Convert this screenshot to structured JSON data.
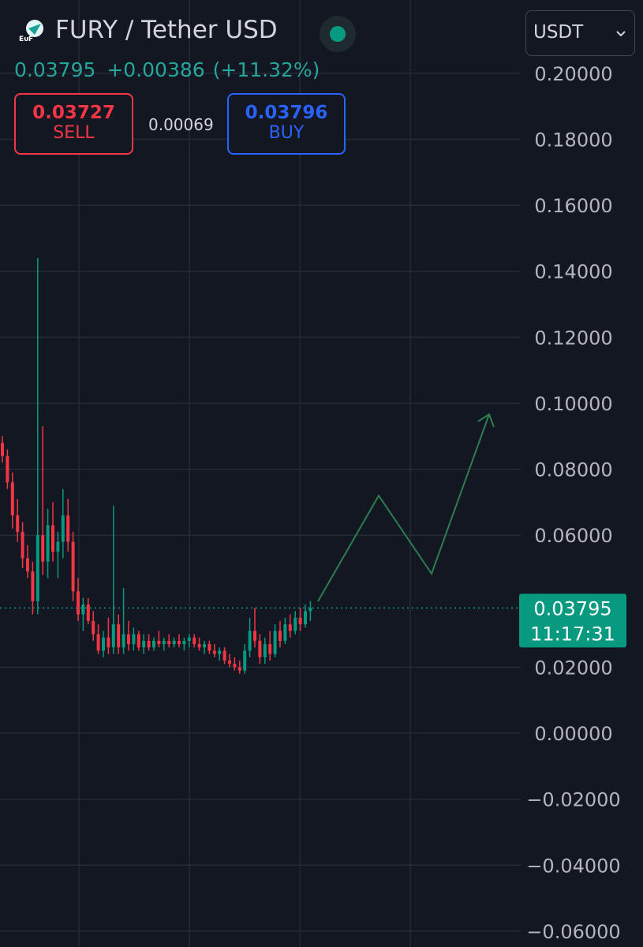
{
  "chart_data": {
    "type": "candlestick",
    "title": "FURY / Tether USD",
    "last_price": 0.03795,
    "change": "+0.00386",
    "change_pct": "(+11.32%)",
    "sell_price": 0.03727,
    "sell_label": "SELL",
    "spread": 0.00069,
    "buy_price": 0.03796,
    "buy_label": "BUY",
    "currency": "USDT",
    "countdown": "11:17:31",
    "up_color": "#089981",
    "down_color": "#f23645",
    "ylim": [
      -0.0648,
      0.2222
    ],
    "yticks": [
      {
        "value": 0.2,
        "label": "0.20000"
      },
      {
        "value": 0.18,
        "label": "0.18000"
      },
      {
        "value": 0.16,
        "label": "0.16000"
      },
      {
        "value": 0.14,
        "label": "0.14000"
      },
      {
        "value": 0.12,
        "label": "0.12000"
      },
      {
        "value": 0.1,
        "label": "0.10000"
      },
      {
        "value": 0.08,
        "label": "0.08000"
      },
      {
        "value": 0.06,
        "label": "0.06000"
      },
      {
        "value": 0.02,
        "label": "0.02000"
      },
      {
        "value": 0,
        "label": "0.00000"
      },
      {
        "value": -0.02,
        "label": "−0.02000"
      },
      {
        "value": -0.04,
        "label": "−0.04000"
      },
      {
        "value": -0.06,
        "label": "−0.06000"
      }
    ],
    "grid": true,
    "open": [
      0.088,
      0.084,
      0.076,
      0.066,
      0.061,
      0.053,
      0.049,
      0.04,
      0.06,
      0.052,
      0.063,
      0.055,
      0.058,
      0.066,
      0.058,
      0.043,
      0.036,
      0.039,
      0.034,
      0.03,
      0.025,
      0.029,
      0.026,
      0.033,
      0.026,
      0.03,
      0.027,
      0.03,
      0.026,
      0.028,
      0.026,
      0.028,
      0.027,
      0.028,
      0.027,
      0.028,
      0.027,
      0.028,
      0.029,
      0.027,
      0.026,
      0.027,
      0.025,
      0.024,
      0.025,
      0.022,
      0.021,
      0.02,
      0.019,
      0.025,
      0.031,
      0.028,
      0.023,
      0.027,
      0.024,
      0.031,
      0.028,
      0.033,
      0.031,
      0.035,
      0.033,
      0.037
    ],
    "high": [
      0.09,
      0.086,
      0.079,
      0.071,
      0.064,
      0.057,
      0.052,
      0.144,
      0.093,
      0.068,
      0.07,
      0.061,
      0.074,
      0.071,
      0.061,
      0.047,
      0.041,
      0.041,
      0.037,
      0.033,
      0.031,
      0.035,
      0.069,
      0.036,
      0.044,
      0.034,
      0.032,
      0.031,
      0.03,
      0.03,
      0.029,
      0.031,
      0.029,
      0.03,
      0.029,
      0.03,
      0.029,
      0.03,
      0.03,
      0.029,
      0.028,
      0.028,
      0.027,
      0.026,
      0.026,
      0.024,
      0.023,
      0.022,
      0.027,
      0.035,
      0.038,
      0.03,
      0.029,
      0.031,
      0.033,
      0.034,
      0.035,
      0.036,
      0.037,
      0.038,
      0.039,
      0.04
    ],
    "low": [
      0.082,
      0.074,
      0.062,
      0.058,
      0.05,
      0.047,
      0.036,
      0.036,
      0.048,
      0.047,
      0.052,
      0.047,
      0.053,
      0.055,
      0.04,
      0.034,
      0.031,
      0.033,
      0.028,
      0.024,
      0.023,
      0.024,
      0.024,
      0.024,
      0.024,
      0.025,
      0.025,
      0.025,
      0.024,
      0.025,
      0.025,
      0.026,
      0.025,
      0.026,
      0.026,
      0.026,
      0.025,
      0.026,
      0.026,
      0.025,
      0.024,
      0.024,
      0.023,
      0.022,
      0.021,
      0.02,
      0.019,
      0.018,
      0.018,
      0.023,
      0.026,
      0.021,
      0.021,
      0.022,
      0.023,
      0.026,
      0.027,
      0.029,
      0.03,
      0.031,
      0.032,
      0.034
    ],
    "close": [
      0.084,
      0.076,
      0.066,
      0.061,
      0.053,
      0.049,
      0.04,
      0.06,
      0.052,
      0.063,
      0.055,
      0.058,
      0.066,
      0.058,
      0.043,
      0.036,
      0.039,
      0.034,
      0.03,
      0.025,
      0.029,
      0.026,
      0.033,
      0.026,
      0.03,
      0.027,
      0.03,
      0.026,
      0.028,
      0.026,
      0.028,
      0.027,
      0.028,
      0.027,
      0.028,
      0.027,
      0.028,
      0.029,
      0.027,
      0.026,
      0.027,
      0.025,
      0.024,
      0.025,
      0.022,
      0.021,
      0.02,
      0.019,
      0.025,
      0.031,
      0.028,
      0.023,
      0.027,
      0.024,
      0.031,
      0.028,
      0.033,
      0.031,
      0.035,
      0.033,
      0.037,
      0.03795
    ]
  }
}
